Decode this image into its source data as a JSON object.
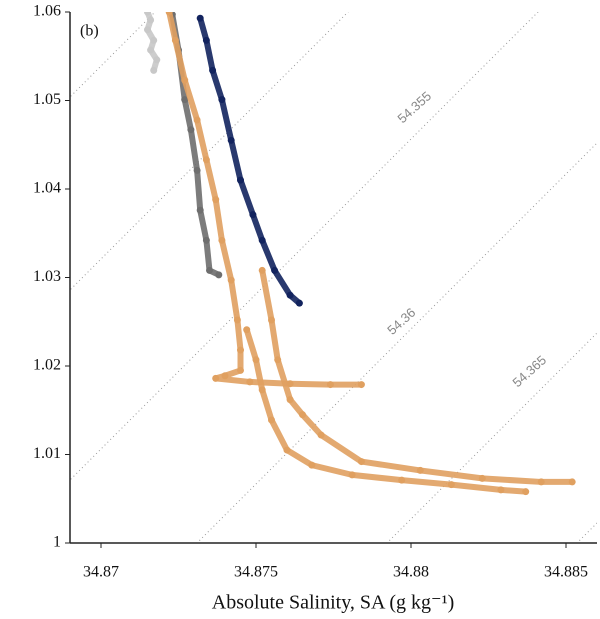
{
  "chart_data": {
    "type": "scatter",
    "panel_label": "(b)",
    "xlabel": "Absolute Salinity, SA (g kg⁻¹)",
    "xlim": [
      34.869,
      34.886
    ],
    "xticks": [
      34.87,
      34.875,
      34.88,
      34.885
    ],
    "ylim": [
      1,
      1.06
    ],
    "yticks": [
      1,
      1.01,
      1.02,
      1.03,
      1.04,
      1.05,
      1.06
    ],
    "isopycnal_labels": [
      "54.355",
      "54.36",
      "54.365"
    ],
    "series": [
      {
        "color": "#c8c8c8",
        "x": [
          34.8715,
          34.8716,
          34.8715,
          34.8717,
          34.8716,
          34.8718,
          34.8717
        ],
        "values": [
          1.06,
          1.0591,
          1.058,
          1.0568,
          1.0557,
          1.0546,
          1.0534
        ]
      },
      {
        "color": "#6e6e6e",
        "x": [
          34.8723,
          34.8725,
          34.8727,
          34.8729,
          34.8731,
          34.8732,
          34.8734,
          34.8735,
          34.8738
        ],
        "values": [
          1.0597,
          1.0557,
          1.0501,
          1.0467,
          1.0421,
          1.0376,
          1.0342,
          1.0308,
          1.0303
        ]
      },
      {
        "color": "#e0a060",
        "x": [
          34.8722,
          34.8724,
          34.8727,
          34.8731,
          34.8734,
          34.8737,
          34.8739,
          34.8742,
          34.8744,
          34.8745,
          34.8745,
          34.874,
          34.8737,
          34.8748,
          34.8761,
          34.8774,
          34.8784
        ],
        "values": [
          1.06,
          1.0568,
          1.0523,
          1.0478,
          1.0433,
          1.0388,
          1.0342,
          1.0297,
          1.0252,
          1.0218,
          1.0195,
          1.0189,
          1.0186,
          1.0182,
          1.018,
          1.0179,
          1.0179
        ]
      },
      {
        "color": "#e0a060",
        "x": [
          34.8747,
          34.875,
          34.8752,
          34.8755,
          34.876,
          34.8768,
          34.8781,
          34.8797,
          34.8813,
          34.8829,
          34.8837
        ],
        "values": [
          1.0241,
          1.0207,
          1.0173,
          1.0139,
          1.0105,
          1.0088,
          1.0077,
          1.0071,
          1.0066,
          1.006,
          1.0058
        ]
      },
      {
        "color": "#e0a060",
        "x": [
          34.8752,
          34.8755,
          34.8757,
          34.8761,
          34.8765,
          34.8771,
          34.8784,
          34.8803,
          34.8823,
          34.8842,
          34.8852
        ],
        "values": [
          1.0308,
          1.0252,
          1.0207,
          1.0162,
          1.0145,
          1.0122,
          1.0092,
          1.0082,
          1.0073,
          1.0069,
          1.0069
        ]
      },
      {
        "color": "#12235e",
        "x": [
          34.8732,
          34.8734,
          34.8736,
          34.8739,
          34.8742,
          34.8745,
          34.8749,
          34.8752,
          34.8756,
          34.8761,
          34.8764
        ],
        "values": [
          1.0593,
          1.0568,
          1.0534,
          1.0501,
          1.0455,
          1.041,
          1.0371,
          1.0342,
          1.0308,
          1.028,
          1.0271
        ]
      }
    ]
  }
}
